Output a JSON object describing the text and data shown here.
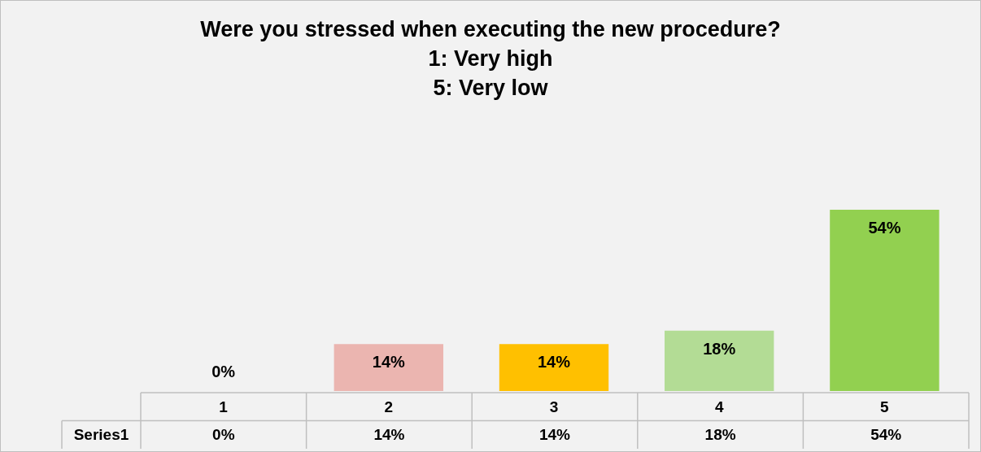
{
  "chart_data": {
    "type": "bar",
    "title": "Were you stressed when executing the new procedure?\n1: Very high\n5: Very low",
    "categories": [
      "1",
      "2",
      "3",
      "4",
      "5"
    ],
    "series": [
      {
        "name": "Series1",
        "values": [
          0,
          14,
          14,
          18,
          54
        ],
        "value_labels": [
          "0%",
          "14%",
          "14%",
          "18%",
          "54%"
        ],
        "colors": [
          "#ebb5b0",
          "#ebb5b0",
          "#ffc000",
          "#b3dc95",
          "#92d050"
        ]
      }
    ]
  }
}
